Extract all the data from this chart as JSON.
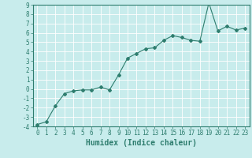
{
  "x": [
    0,
    1,
    2,
    3,
    4,
    5,
    6,
    7,
    8,
    9,
    10,
    11,
    12,
    13,
    14,
    15,
    16,
    17,
    18,
    19,
    20,
    21,
    22,
    23
  ],
  "y": [
    -3.8,
    -3.5,
    -1.8,
    -0.5,
    -0.2,
    -0.1,
    -0.1,
    0.2,
    -0.1,
    1.5,
    3.3,
    3.8,
    4.3,
    4.4,
    5.2,
    5.7,
    5.5,
    5.2,
    5.1,
    9.2,
    6.2,
    6.7,
    6.3,
    6.5
  ],
  "line_color": "#2e7d6e",
  "marker": "D",
  "marker_size": 2,
  "bg_color": "#c8ecec",
  "grid_color": "#ffffff",
  "xlabel": "Humidex (Indice chaleur)",
  "xlim": [
    -0.5,
    23.5
  ],
  "ylim": [
    -4,
    9
  ],
  "yticks": [
    -4,
    -3,
    -2,
    -1,
    0,
    1,
    2,
    3,
    4,
    5,
    6,
    7,
    8,
    9
  ],
  "xticks": [
    0,
    1,
    2,
    3,
    4,
    5,
    6,
    7,
    8,
    9,
    10,
    11,
    12,
    13,
    14,
    15,
    16,
    17,
    18,
    19,
    20,
    21,
    22,
    23
  ],
  "tick_color": "#2e7d6e",
  "label_color": "#2e7d6e",
  "xlabel_fontsize": 7,
  "tick_fontsize": 5.5,
  "linewidth": 0.8
}
